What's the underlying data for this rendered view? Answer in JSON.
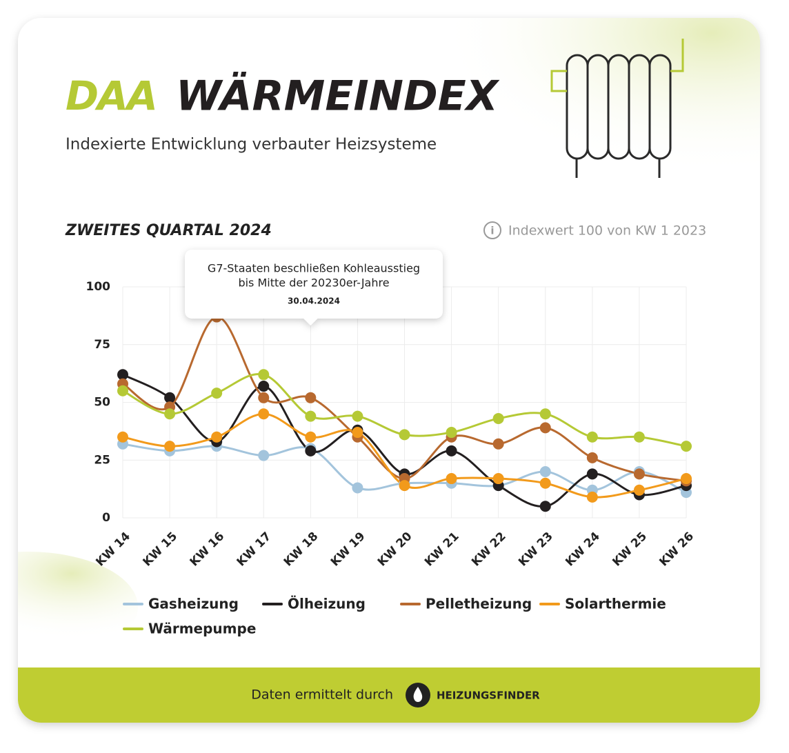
{
  "logo": "DAA",
  "title": "WÄRMEINDEX",
  "subtitle": "Indexierte Entwicklung verbauter Heizsysteme",
  "chart_data": {
    "type": "line",
    "subtitle": "ZWEITES QUARTAL 2024",
    "note": "Indexwert 100 von KW 1 2023",
    "categories": [
      "KW 14",
      "KW 15",
      "KW 16",
      "KW 17",
      "KW 18",
      "KW 19",
      "KW 20",
      "KW 21",
      "KW 22",
      "KW 23",
      "KW 24",
      "KW 25",
      "KW 26"
    ],
    "ylim": [
      0,
      100
    ],
    "yticks": [
      0,
      25,
      50,
      75,
      100
    ],
    "grid": true,
    "series": [
      {
        "name": "Gasheizung",
        "color": "#a3c4dc",
        "values": [
          32,
          29,
          31,
          27,
          30,
          13,
          15,
          15,
          14,
          20,
          12,
          20,
          11
        ]
      },
      {
        "name": "Ölheizung",
        "color": "#231f20",
        "values": [
          62,
          52,
          33,
          57,
          29,
          38,
          19,
          29,
          14,
          5,
          19,
          10,
          14
        ]
      },
      {
        "name": "Pelletheizung",
        "color": "#b8692f",
        "values": [
          58,
          48,
          87,
          52,
          52,
          35,
          17,
          35,
          32,
          39,
          26,
          19,
          16
        ]
      },
      {
        "name": "Solarthermie",
        "color": "#f29a1b",
        "values": [
          35,
          31,
          35,
          45,
          35,
          37,
          14,
          17,
          17,
          15,
          9,
          12,
          17
        ]
      },
      {
        "name": "Wärmepumpe",
        "color": "#b5c935",
        "values": [
          55,
          45,
          54,
          62,
          44,
          44,
          36,
          37,
          43,
          45,
          35,
          35,
          31
        ]
      }
    ],
    "annotation": {
      "category": "KW 18",
      "lines": [
        "G7-Staaten beschließen Kohleausstieg",
        "bis Mitte der 20230er-Jahre"
      ],
      "date": "30.04.2024"
    }
  },
  "footer": {
    "text": "Daten ermittelt durch",
    "brand": "HEIZUNGSFINDER"
  }
}
